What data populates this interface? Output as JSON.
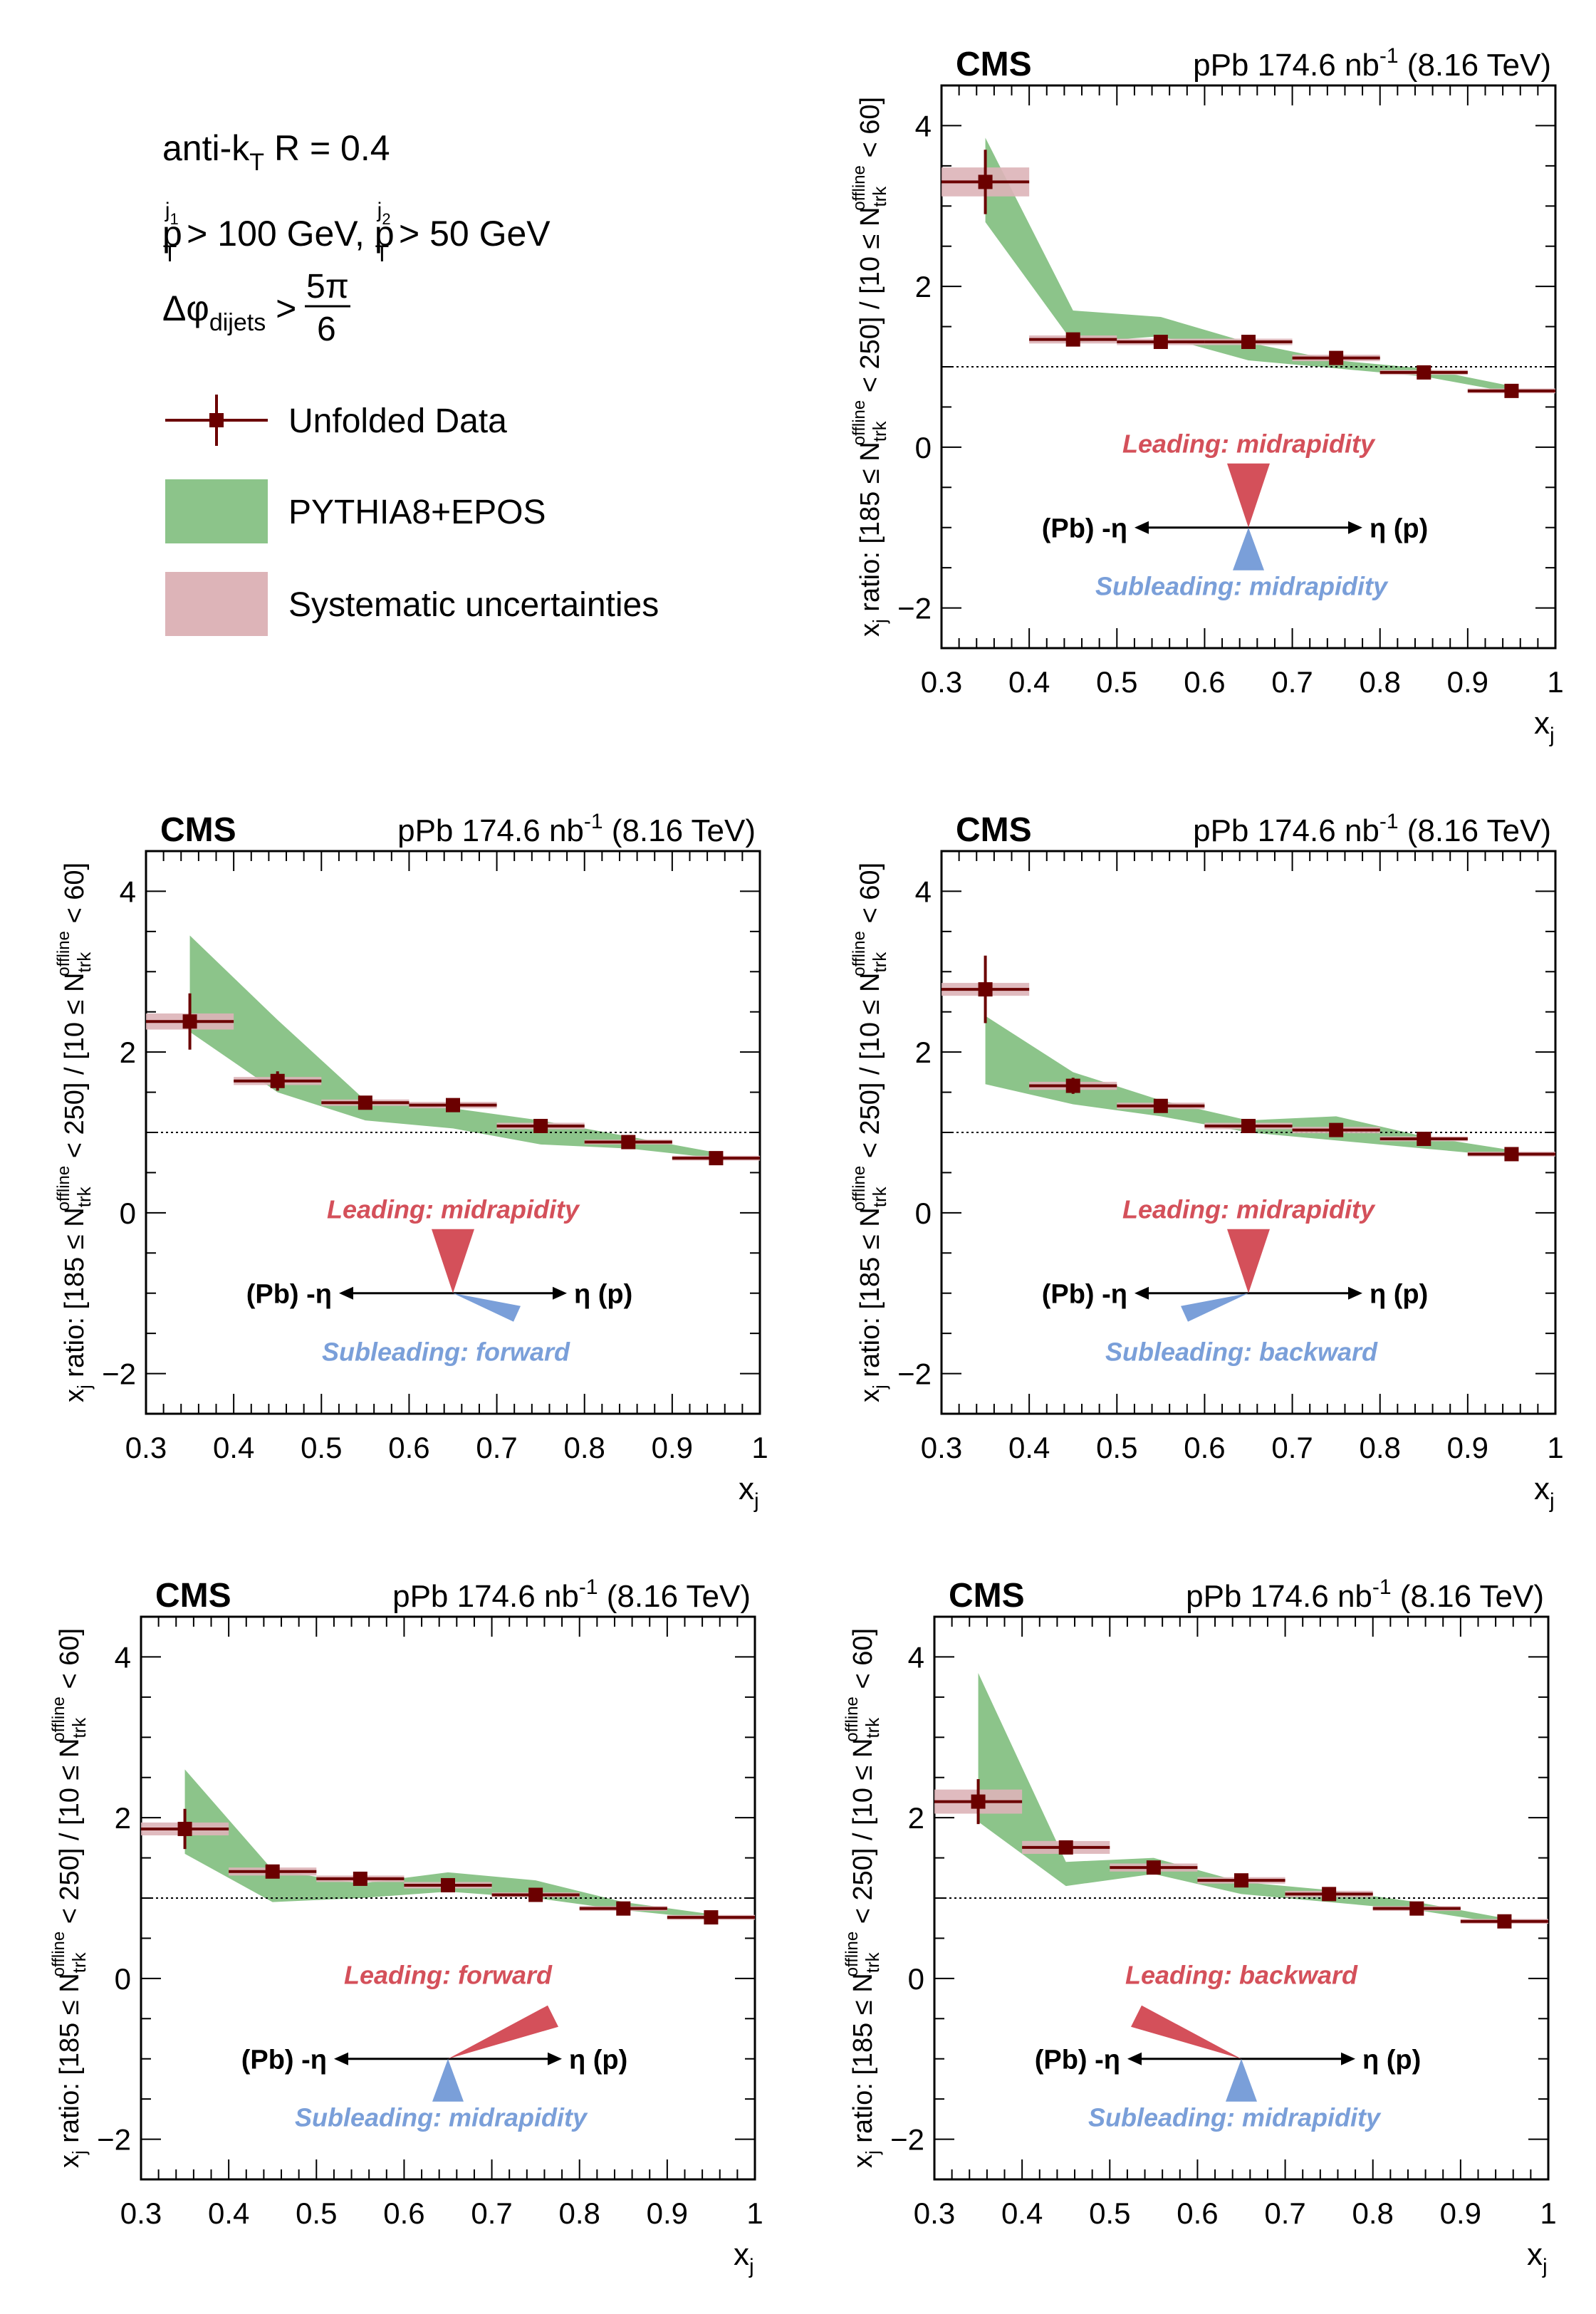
{
  "legend": {
    "line1": "anti-k",
    "line1_sub": "T",
    "line1_rest": " R = 0.4",
    "line2": "p",
    "line2_sup1": "j",
    "line2_sup1_sub": "1",
    "line2_sub1": "T",
    "line2_mid": " > 100 GeV, p",
    "line2_sup2": "j",
    "line2_sup2_sub": "2",
    "line2_sub2": "T",
    "line2_rest": " > 50 GeV",
    "line3": "Δφ",
    "line3_sub": "dijets",
    "line3_gt": " >",
    "line3_num": "5π",
    "line3_den": "6",
    "entries": [
      {
        "label": "Unfolded Data",
        "color": "#6b0000"
      },
      {
        "label": "PYTHIA8+EPOS",
        "color": "#8cc48a"
      },
      {
        "label": "Systematic uncertainties",
        "color": "#ddb4b8"
      }
    ]
  },
  "common": {
    "cms": "CMS",
    "lumi_pre": "pPb 174.6 nb",
    "lumi_sup": "-1",
    "lumi_post": " (8.16 TeV)",
    "xlabel": "x",
    "xlabel_sub": "j",
    "ylabel": "x_j ratio: [185 ≤ N_trk^offline < 250] / [10 ≤ N_trk^offline < 60]",
    "ylabel_parts": {
      "a": "x",
      "a_sub": "j",
      "b": " ratio: [185 ≤ N",
      "b_sub": "trk",
      "b_sup": "offline",
      "c": " < 250] / [10 ≤ N",
      "c_sub": "trk",
      "c_sup": "offline",
      "d": " < 60]"
    },
    "pb_label": "(Pb) -η",
    "p_label": "η (p)",
    "colors": {
      "data": "#6b0000",
      "model": "#8cc48a",
      "syst": "#ddb4b8",
      "leading": "#d4505a",
      "subleading": "#7a9fd9"
    }
  },
  "chart_data": [
    {
      "type": "scatter",
      "panel": "top-right",
      "xlim": [
        0.3,
        1.0
      ],
      "ylim": [
        -2.5,
        4.5
      ],
      "xticks": [
        "0.3",
        "0.4",
        "0.5",
        "0.6",
        "0.7",
        "0.8",
        "0.9",
        "1"
      ],
      "yticks": [
        "−2",
        "0",
        "2",
        "4"
      ],
      "reference_line": 1.0,
      "leading": "Leading: midrapidity",
      "subleading": "Subleading: midrapidity",
      "leading_dir": "mid",
      "subleading_dir": "mid",
      "series": [
        {
          "name": "Unfolded Data",
          "x": [
            0.35,
            0.45,
            0.55,
            0.65,
            0.75,
            0.85,
            0.95
          ],
          "y": [
            3.3,
            1.34,
            1.31,
            1.31,
            1.11,
            0.93,
            0.7
          ],
          "yerr": [
            0.4,
            0.08,
            0.06,
            0.06,
            0.05,
            0.04,
            0.04
          ],
          "syst": [
            0.18,
            0.05,
            0.04,
            0.04,
            0.04,
            0.03,
            0.03
          ]
        },
        {
          "name": "PYTHIA8+EPOS",
          "x": [
            0.35,
            0.45,
            0.55,
            0.65,
            0.75,
            0.85,
            0.95
          ],
          "low": [
            2.8,
            1.3,
            1.38,
            1.08,
            0.98,
            0.88,
            0.68
          ],
          "high": [
            3.85,
            1.7,
            1.62,
            1.3,
            1.08,
            0.98,
            0.76
          ]
        }
      ]
    },
    {
      "type": "scatter",
      "panel": "middle-left",
      "xlim": [
        0.3,
        1.0
      ],
      "ylim": [
        -2.5,
        4.5
      ],
      "xticks": [
        "0.3",
        "0.4",
        "0.5",
        "0.6",
        "0.7",
        "0.8",
        "0.9",
        "1"
      ],
      "yticks": [
        "−2",
        "0",
        "2",
        "4"
      ],
      "reference_line": 1.0,
      "leading": "Leading: midrapidity",
      "subleading": "Subleading: forward",
      "leading_dir": "mid",
      "subleading_dir": "forward",
      "series": [
        {
          "name": "Unfolded Data",
          "x": [
            0.35,
            0.45,
            0.55,
            0.65,
            0.75,
            0.85,
            0.95
          ],
          "y": [
            2.38,
            1.64,
            1.37,
            1.34,
            1.08,
            0.88,
            0.68
          ],
          "yerr": [
            0.35,
            0.12,
            0.06,
            0.06,
            0.05,
            0.04,
            0.04
          ],
          "syst": [
            0.1,
            0.05,
            0.04,
            0.04,
            0.04,
            0.03,
            0.03
          ]
        },
        {
          "name": "PYTHIA8+EPOS",
          "x": [
            0.35,
            0.45,
            0.55,
            0.65,
            0.75,
            0.85,
            0.95
          ],
          "low": [
            2.25,
            1.5,
            1.15,
            1.05,
            0.85,
            0.8,
            0.68
          ],
          "high": [
            3.45,
            2.4,
            1.4,
            1.3,
            1.15,
            0.95,
            0.75
          ]
        }
      ]
    },
    {
      "type": "scatter",
      "panel": "middle-right",
      "xlim": [
        0.3,
        1.0
      ],
      "ylim": [
        -2.5,
        4.5
      ],
      "xticks": [
        "0.3",
        "0.4",
        "0.5",
        "0.6",
        "0.7",
        "0.8",
        "0.9",
        "1"
      ],
      "yticks": [
        "−2",
        "0",
        "2",
        "4"
      ],
      "reference_line": 1.0,
      "leading": "Leading: midrapidity",
      "subleading": "Subleading: backward",
      "leading_dir": "mid",
      "subleading_dir": "backward",
      "series": [
        {
          "name": "Unfolded Data",
          "x": [
            0.35,
            0.45,
            0.55,
            0.65,
            0.75,
            0.85,
            0.95
          ],
          "y": [
            2.78,
            1.58,
            1.33,
            1.08,
            1.03,
            0.92,
            0.73
          ],
          "yerr": [
            0.42,
            0.1,
            0.07,
            0.06,
            0.05,
            0.05,
            0.05
          ],
          "syst": [
            0.08,
            0.05,
            0.04,
            0.04,
            0.04,
            0.03,
            0.03
          ]
        },
        {
          "name": "PYTHIA8+EPOS",
          "x": [
            0.35,
            0.45,
            0.55,
            0.65,
            0.75,
            0.85,
            0.95
          ],
          "low": [
            1.6,
            1.35,
            1.2,
            1.0,
            0.9,
            0.8,
            0.7
          ],
          "high": [
            2.45,
            1.75,
            1.4,
            1.15,
            1.2,
            0.95,
            0.78
          ]
        }
      ]
    },
    {
      "type": "scatter",
      "panel": "bottom-left",
      "xlim": [
        0.3,
        1.0
      ],
      "ylim": [
        -2.5,
        4.5
      ],
      "xticks": [
        "0.3",
        "0.4",
        "0.5",
        "0.6",
        "0.7",
        "0.8",
        "0.9",
        "1"
      ],
      "yticks": [
        "−2",
        "0",
        "2",
        "4"
      ],
      "reference_line": 1.0,
      "leading": "Leading: forward",
      "subleading": "Subleading: midrapidity",
      "leading_dir": "forward",
      "subleading_dir": "mid",
      "series": [
        {
          "name": "Unfolded Data",
          "x": [
            0.35,
            0.45,
            0.55,
            0.65,
            0.75,
            0.85,
            0.95
          ],
          "y": [
            1.86,
            1.33,
            1.24,
            1.16,
            1.04,
            0.87,
            0.76
          ],
          "yerr": [
            0.25,
            0.06,
            0.05,
            0.05,
            0.04,
            0.04,
            0.04
          ],
          "syst": [
            0.08,
            0.05,
            0.04,
            0.04,
            0.03,
            0.03,
            0.03
          ]
        },
        {
          "name": "PYTHIA8+EPOS",
          "x": [
            0.35,
            0.45,
            0.55,
            0.65,
            0.75,
            0.85,
            0.95
          ],
          "low": [
            1.55,
            0.95,
            1.0,
            1.08,
            1.0,
            0.85,
            0.74
          ],
          "high": [
            2.6,
            1.35,
            1.18,
            1.32,
            1.22,
            0.95,
            0.8
          ]
        }
      ]
    },
    {
      "type": "scatter",
      "panel": "bottom-right",
      "xlim": [
        0.3,
        1.0
      ],
      "ylim": [
        -2.5,
        4.5
      ],
      "xticks": [
        "0.3",
        "0.4",
        "0.5",
        "0.6",
        "0.7",
        "0.8",
        "0.9",
        "1"
      ],
      "yticks": [
        "−2",
        "0",
        "2",
        "4"
      ],
      "reference_line": 1.0,
      "leading": "Leading: backward",
      "subleading": "Subleading: midrapidity",
      "leading_dir": "backward",
      "subleading_dir": "mid",
      "series": [
        {
          "name": "Unfolded Data",
          "x": [
            0.35,
            0.45,
            0.55,
            0.65,
            0.75,
            0.85,
            0.95
          ],
          "y": [
            2.2,
            1.63,
            1.38,
            1.22,
            1.05,
            0.87,
            0.71
          ],
          "yerr": [
            0.28,
            0.08,
            0.06,
            0.05,
            0.04,
            0.04,
            0.04
          ],
          "syst": [
            0.15,
            0.08,
            0.05,
            0.04,
            0.04,
            0.03,
            0.03
          ]
        },
        {
          "name": "PYTHIA8+EPOS",
          "x": [
            0.35,
            0.45,
            0.55,
            0.65,
            0.75,
            0.85,
            0.95
          ],
          "low": [
            1.95,
            1.15,
            1.3,
            1.05,
            0.95,
            0.85,
            0.68
          ],
          "high": [
            3.8,
            1.45,
            1.5,
            1.2,
            1.1,
            0.95,
            0.75
          ]
        }
      ]
    }
  ]
}
